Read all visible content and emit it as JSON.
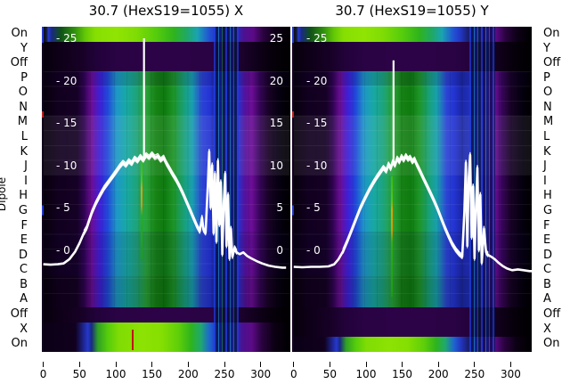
{
  "ylabel": "Dipole",
  "row_labels": [
    "On",
    "Y",
    "Off",
    "P",
    "O",
    "N",
    "M",
    "L",
    "K",
    "J",
    "I",
    "H",
    "G",
    "F",
    "E",
    "D",
    "C",
    "B",
    "A",
    "Off",
    "X",
    "On"
  ],
  "inside_ticks_left": [
    "- 25",
    "- 20",
    "- 15",
    "- 10",
    "- 5",
    "- 0"
  ],
  "inside_ticks_right": [
    "25",
    "20",
    "15",
    "10",
    "5",
    "0"
  ],
  "inside_tick_values": [
    25,
    20,
    15,
    10,
    5,
    0
  ],
  "x_tick_labels": [
    "0",
    "50",
    "100",
    "150",
    "200",
    "250",
    "300"
  ],
  "palette": {
    "background": "#ffffff",
    "text": "#000000",
    "curve": "#ffffff",
    "heat_dark": "#10001c",
    "heat_purple": "#6c0d96",
    "heat_blue": "#2334d4",
    "heat_cyan": "#1aa4b0",
    "heat_green": "#1d9426",
    "heat_bright_green": "#8ce203",
    "red_marker": "#c01212",
    "yellow_artifact": "#e0a400"
  },
  "chart_data": [
    {
      "type": "heatmap",
      "title": "30.7 (HexS19=1055) X",
      "x_range": [
        0,
        335
      ],
      "x_ticks": [
        0,
        50,
        100,
        150,
        200,
        250,
        300
      ],
      "y_categories": [
        "On",
        "Y",
        "Off",
        "P",
        "O",
        "N",
        "M",
        "L",
        "K",
        "J",
        "I",
        "H",
        "G",
        "F",
        "E",
        "D",
        "C",
        "B",
        "A",
        "Off",
        "X",
        "On"
      ],
      "value_scale_ticks": [
        25,
        20,
        15,
        10,
        5,
        0
      ],
      "row_style": {
        "On_top": "bright",
        "Y": "dark",
        "Off_top": "dark",
        "P_to_A": "blue-green gradient",
        "Off_bottom": "dark",
        "X": "bright",
        "On_bottom": "bright"
      },
      "overlay_line": {
        "name": "profile",
        "color": "#ffffff",
        "points": [
          [
            0,
            -1.7
          ],
          [
            10,
            -1.75
          ],
          [
            20,
            -1.7
          ],
          [
            28,
            -1.6
          ],
          [
            36,
            -1.1
          ],
          [
            44,
            -0.2
          ],
          [
            50,
            0.8
          ],
          [
            56,
            2.0
          ],
          [
            60,
            2.6
          ],
          [
            63,
            3.4
          ],
          [
            67,
            4.4
          ],
          [
            72,
            5.4
          ],
          [
            78,
            6.4
          ],
          [
            84,
            7.3
          ],
          [
            90,
            8.0
          ],
          [
            96,
            8.7
          ],
          [
            101,
            9.3
          ],
          [
            106,
            9.9
          ],
          [
            110,
            10.3
          ],
          [
            114,
            10.0
          ],
          [
            118,
            10.5
          ],
          [
            122,
            10.2
          ],
          [
            126,
            10.8
          ],
          [
            130,
            10.5
          ],
          [
            134,
            11.0
          ],
          [
            138,
            10.6
          ],
          [
            142,
            11.2
          ],
          [
            146,
            10.9
          ],
          [
            150,
            11.3
          ],
          [
            154,
            10.9
          ],
          [
            158,
            11.1
          ],
          [
            162,
            10.6
          ],
          [
            166,
            10.9
          ],
          [
            170,
            10.2
          ],
          [
            174,
            9.6
          ],
          [
            178,
            9.0
          ],
          [
            183,
            8.3
          ],
          [
            188,
            7.5
          ],
          [
            193,
            6.6
          ],
          [
            198,
            5.6
          ],
          [
            203,
            4.6
          ],
          [
            208,
            3.6
          ],
          [
            212,
            2.8
          ],
          [
            216,
            2.2
          ],
          [
            219,
            3.8
          ],
          [
            221,
            2.4
          ],
          [
            224,
            2.0
          ],
          [
            227,
            7.5
          ],
          [
            229,
            11.6
          ],
          [
            231,
            5.0
          ],
          [
            233,
            10.0
          ],
          [
            235,
            2.0
          ],
          [
            237,
            9.0
          ],
          [
            239,
            1.0
          ],
          [
            241,
            10.5
          ],
          [
            243,
            3.0
          ],
          [
            245,
            8.0
          ],
          [
            247,
            -0.5
          ],
          [
            249,
            5.5
          ],
          [
            251,
            9.0
          ],
          [
            253,
            0.5
          ],
          [
            255,
            6.5
          ],
          [
            257,
            -1.0
          ],
          [
            259,
            2.5
          ],
          [
            261,
            -0.8
          ],
          [
            264,
            0.2
          ],
          [
            267,
            -0.3
          ],
          [
            271,
            -0.5
          ],
          [
            276,
            -0.3
          ],
          [
            281,
            -0.7
          ],
          [
            287,
            -1.0
          ],
          [
            294,
            -1.3
          ],
          [
            302,
            -1.6
          ],
          [
            311,
            -1.85
          ],
          [
            320,
            -2.0
          ],
          [
            330,
            -2.1
          ],
          [
            335,
            -2.1
          ]
        ]
      },
      "spike": {
        "x": 139,
        "top_value": 25,
        "base_value": 10.6
      },
      "artifact_line": {
        "x": 137,
        "top_value": 10.6,
        "bottom_value": -1.2,
        "has_yellow_segment": true
      },
      "artifact_stripe_region_x": [
        235,
        270
      ],
      "red_marker": {
        "x": 122,
        "row": "On_bottom"
      }
    },
    {
      "type": "heatmap",
      "title": "30.7 (HexS19=1055) Y",
      "x_range": [
        0,
        330
      ],
      "x_ticks": [
        0,
        50,
        100,
        150,
        200,
        250,
        300
      ],
      "y_categories": [
        "On",
        "Y",
        "Off",
        "P",
        "O",
        "N",
        "M",
        "L",
        "K",
        "J",
        "I",
        "H",
        "G",
        "F",
        "E",
        "D",
        "C",
        "B",
        "A",
        "Off",
        "X",
        "On"
      ],
      "value_scale_ticks": [
        25,
        20,
        15,
        10,
        5,
        0
      ],
      "row_style": {
        "On_top": "bright",
        "Y": "dark",
        "Off_top": "dark",
        "P_to_A": "blue-green gradient",
        "Off_bottom": "dark",
        "X": "dark",
        "On_bottom": "bright"
      },
      "overlay_line": {
        "name": "profile",
        "color": "#ffffff",
        "points": [
          [
            0,
            -2.0
          ],
          [
            12,
            -2.05
          ],
          [
            24,
            -2.0
          ],
          [
            36,
            -2.0
          ],
          [
            48,
            -1.95
          ],
          [
            56,
            -1.7
          ],
          [
            62,
            -1.1
          ],
          [
            68,
            -0.2
          ],
          [
            74,
            1.0
          ],
          [
            80,
            2.3
          ],
          [
            86,
            3.6
          ],
          [
            92,
            4.9
          ],
          [
            98,
            6.0
          ],
          [
            104,
            7.0
          ],
          [
            110,
            7.9
          ],
          [
            115,
            8.6
          ],
          [
            120,
            9.2
          ],
          [
            124,
            9.7
          ],
          [
            128,
            9.3
          ],
          [
            131,
            10.1
          ],
          [
            134,
            9.6
          ],
          [
            137,
            10.4
          ],
          [
            140,
            10.0
          ],
          [
            143,
            10.8
          ],
          [
            146,
            10.4
          ],
          [
            149,
            11.0
          ],
          [
            152,
            10.6
          ],
          [
            155,
            11.1
          ],
          [
            158,
            10.7
          ],
          [
            161,
            10.9
          ],
          [
            164,
            10.4
          ],
          [
            167,
            10.7
          ],
          [
            170,
            10.1
          ],
          [
            174,
            9.4
          ],
          [
            179,
            8.5
          ],
          [
            184,
            7.6
          ],
          [
            189,
            6.7
          ],
          [
            194,
            5.8
          ],
          [
            199,
            4.8
          ],
          [
            204,
            3.7
          ],
          [
            209,
            2.6
          ],
          [
            214,
            1.6
          ],
          [
            219,
            0.7
          ],
          [
            224,
            0.0
          ],
          [
            229,
            -0.5
          ],
          [
            233,
            -0.8
          ],
          [
            236,
            4.5
          ],
          [
            238,
            10.3
          ],
          [
            240,
            0.5
          ],
          [
            242,
            8.5
          ],
          [
            244,
            11.2
          ],
          [
            246,
            1.5
          ],
          [
            248,
            7.5
          ],
          [
            250,
            -1.0
          ],
          [
            252,
            5.0
          ],
          [
            254,
            9.7
          ],
          [
            256,
            0.0
          ],
          [
            258,
            6.5
          ],
          [
            260,
            -1.5
          ],
          [
            263,
            2.5
          ],
          [
            266,
            -0.3
          ],
          [
            269,
            -0.6
          ],
          [
            273,
            -0.8
          ],
          [
            278,
            -1.1
          ],
          [
            283,
            -1.5
          ],
          [
            289,
            -1.9
          ],
          [
            295,
            -2.2
          ],
          [
            302,
            -2.4
          ],
          [
            310,
            -2.3
          ],
          [
            318,
            -2.4
          ],
          [
            326,
            -2.5
          ],
          [
            330,
            -2.5
          ]
        ]
      },
      "spike": {
        "x": 138,
        "top_value": 22.4,
        "base_value": 10.4
      },
      "artifact_line": {
        "x": 138,
        "top_value": 8.7,
        "bottom_value": -5.5,
        "has_yellow_segment": true
      },
      "artifact_stripe_region_x": [
        243,
        279
      ],
      "red_marker": null
    }
  ]
}
